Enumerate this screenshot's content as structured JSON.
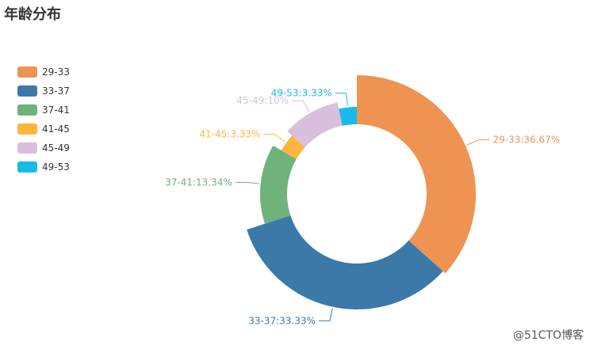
{
  "title": "年龄分布",
  "watermark": "@51CTO博客",
  "chart_data": {
    "type": "pie",
    "variant": "rose",
    "title": "年龄分布",
    "legend_position": "left",
    "categories": [
      "29-33",
      "33-37",
      "37-41",
      "41-45",
      "45-49",
      "49-53"
    ],
    "values": [
      36.67,
      33.33,
      13.34,
      3.33,
      10,
      3.33
    ],
    "labels": [
      "29-33:36.67%",
      "33-37:33.33%",
      "37-41:13.34%",
      "41-45:3.33%",
      "45-49:10%",
      "49-53:3.33%"
    ],
    "colors": [
      "#ef9352",
      "#3a79a8",
      "#6fb27b",
      "#fdb53e",
      "#d8bfdc",
      "#18baea"
    ]
  }
}
